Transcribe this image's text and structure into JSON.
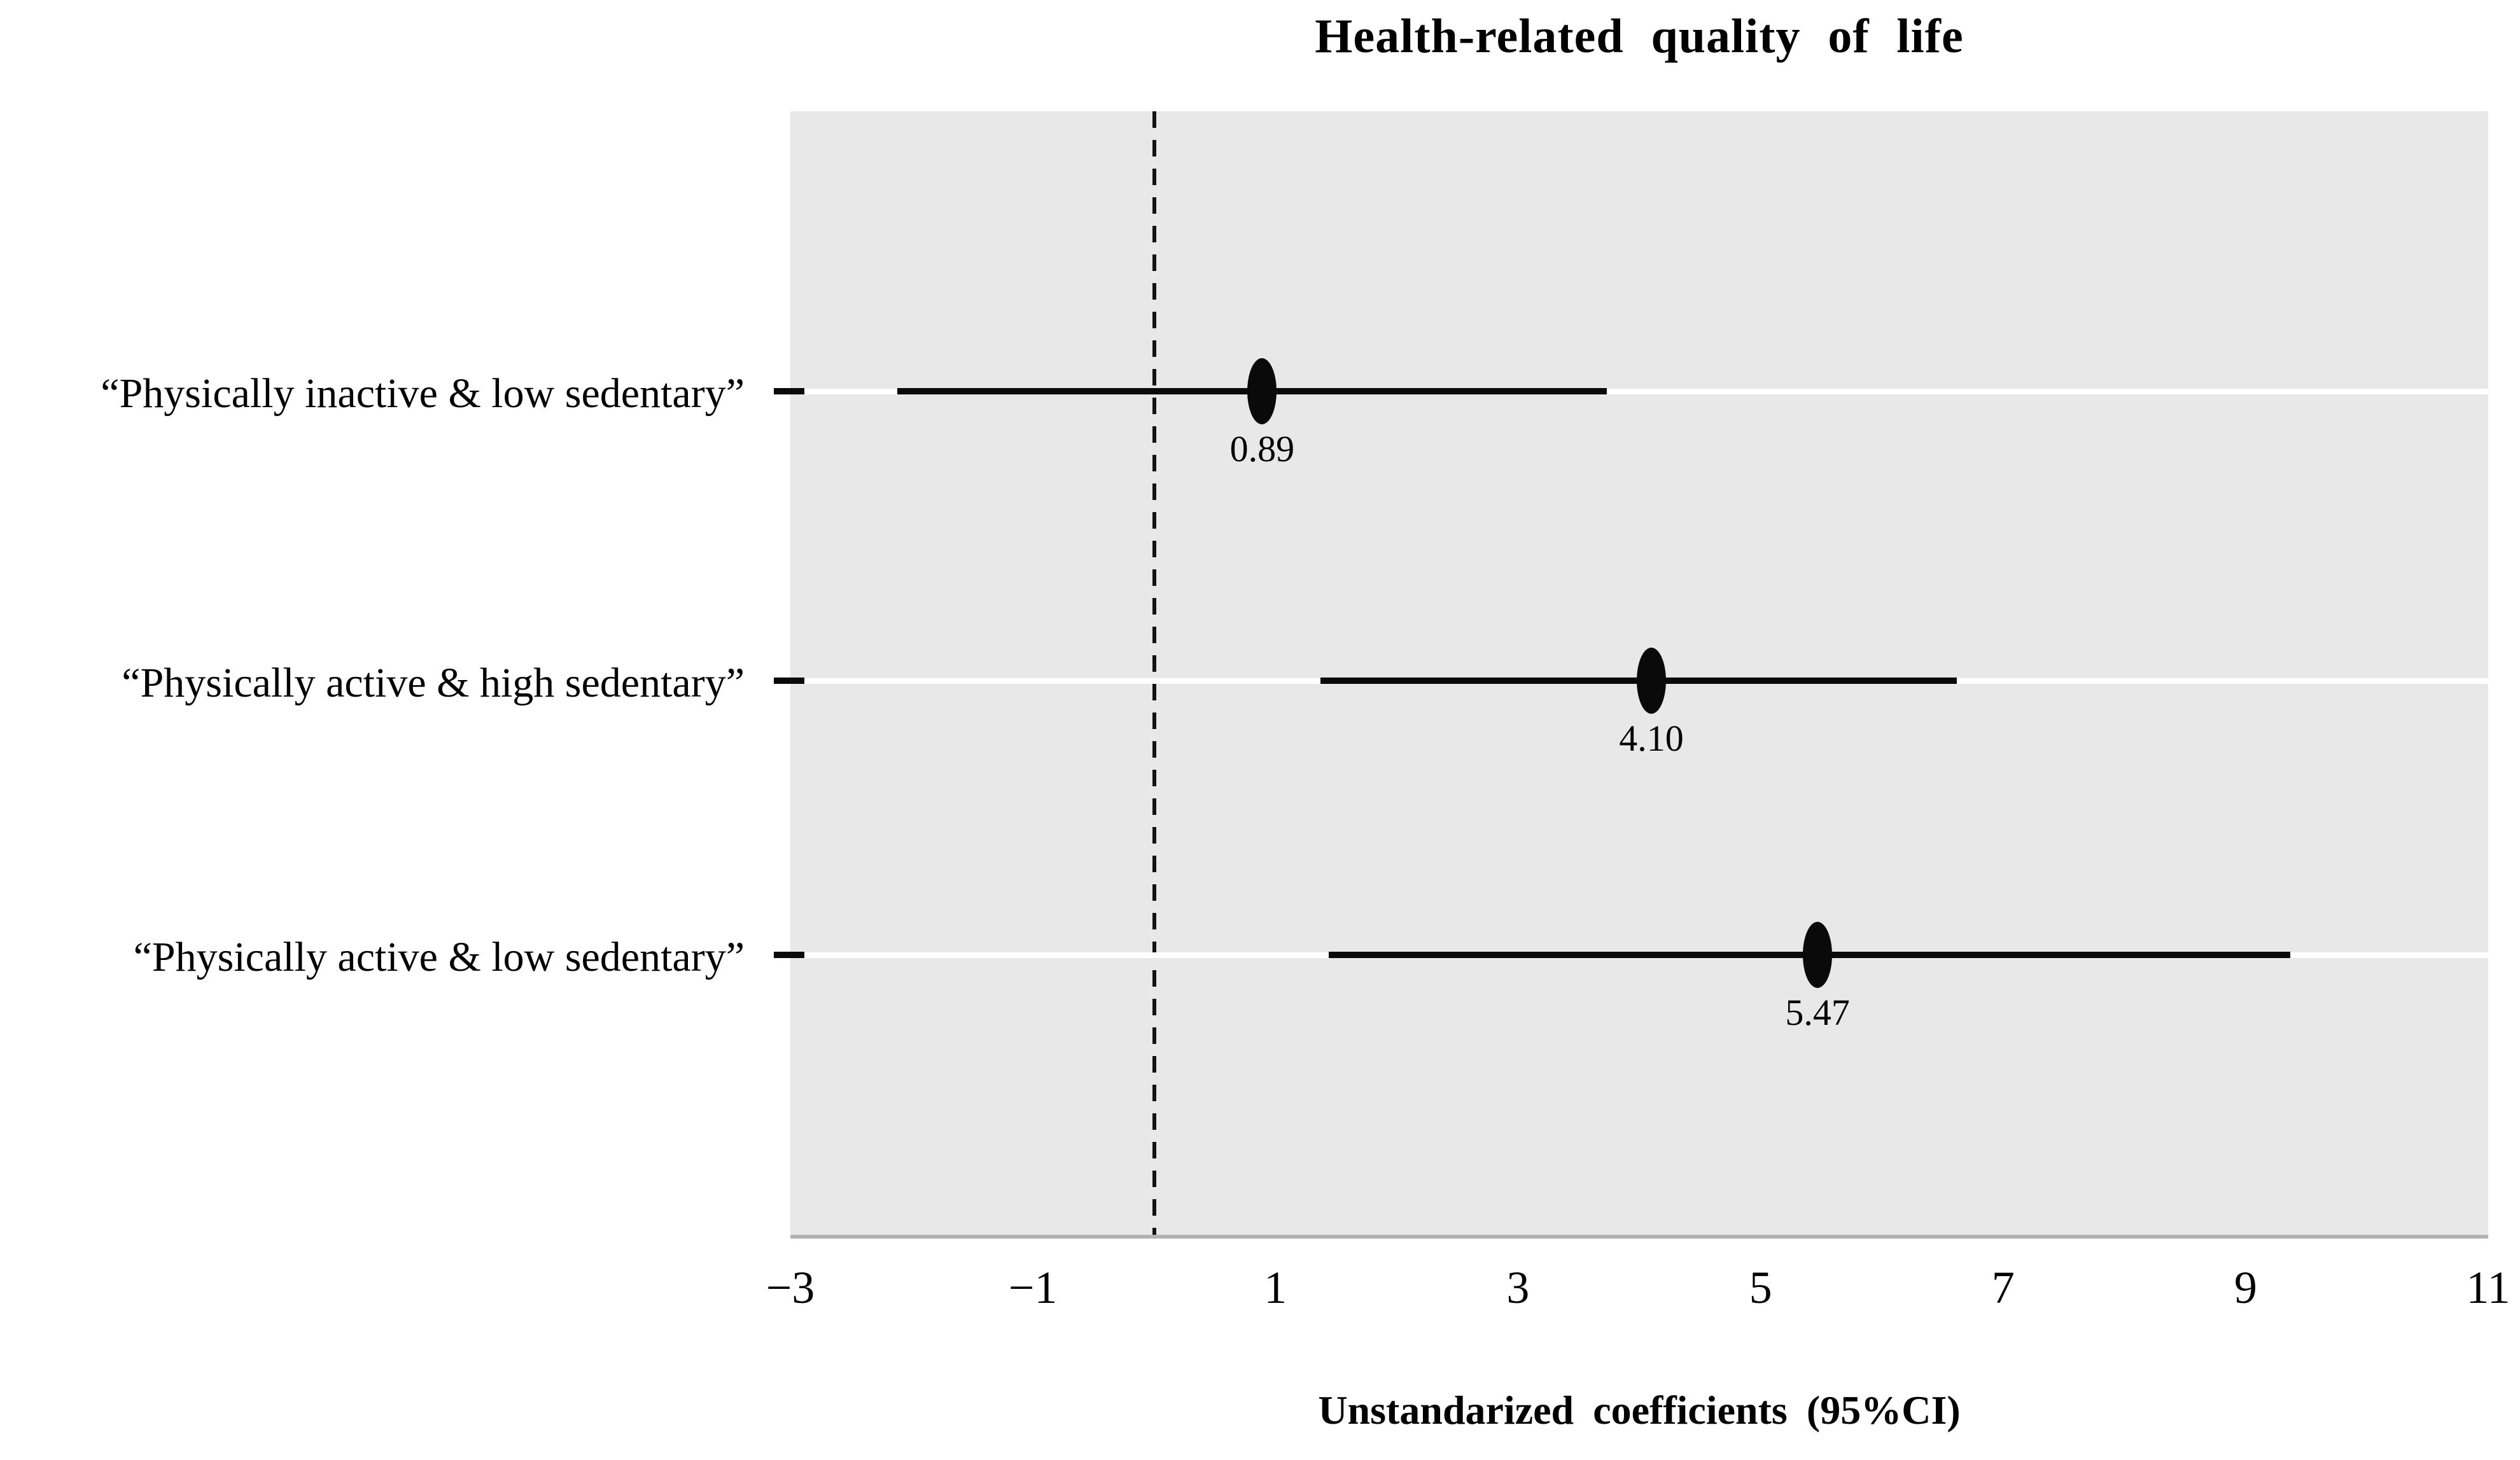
{
  "colors": {
    "plot_background": "#e8e8e8",
    "gridline": "#ffffff",
    "ink": "#0a0a0a",
    "plot_bottom_border": "#b3b3b3",
    "page_background": "#ffffff"
  },
  "chart_data": {
    "type": "scatter",
    "subtype": "forest-plot",
    "title": "Health-related quality of life",
    "xlabel": "Unstandarized coefficients (95%CI)",
    "xlim": [
      -3,
      11
    ],
    "xtick_values": [
      -3,
      -1,
      1,
      3,
      5,
      7,
      9,
      11
    ],
    "xtick_labels": [
      "−3",
      "−1",
      "1",
      "3",
      "5",
      "7",
      "9",
      "11"
    ],
    "reference_line": {
      "x": 0,
      "style": "dashed",
      "color": "#141414"
    },
    "grid": "horizontal-white-lines",
    "legend": "none",
    "rows": [
      {
        "label": "“Physically inactive & low sedentary”",
        "estimate": 0.89,
        "value_label": "0.89",
        "ci": [
          -2.12,
          3.73
        ]
      },
      {
        "label": "“Physically active & high sedentary”",
        "estimate": 4.1,
        "value_label": "4.10",
        "ci": [
          1.37,
          6.62
        ]
      },
      {
        "label": "“Physically active & low sedentary”",
        "estimate": 5.47,
        "value_label": "5.47",
        "ci": [
          1.44,
          9.37
        ]
      }
    ]
  }
}
